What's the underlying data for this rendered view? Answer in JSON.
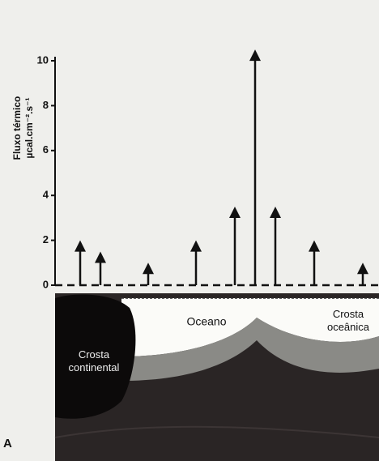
{
  "chart_data": {
    "type": "arrow",
    "y_label": "Fluxo térmico",
    "y_unit": "µcal.cm⁻².s⁻¹",
    "values": [
      2,
      1.5,
      1,
      2,
      3.5,
      10.5,
      3.5,
      2,
      1
    ],
    "ylim": [
      0,
      10
    ],
    "yticks": [
      0,
      2,
      4,
      6,
      8,
      10
    ],
    "color": "#111111",
    "section_labels": {
      "ocean": "Oceano",
      "continental_crust": "Crosta continental",
      "oceanic_crust": "Crosta oceânica",
      "panel": "A"
    }
  }
}
